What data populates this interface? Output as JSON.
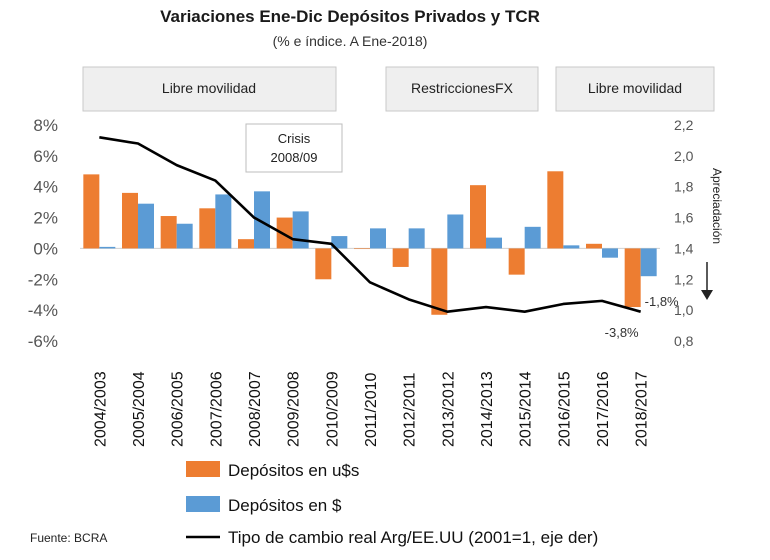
{
  "chart_data": {
    "type": "bar+line",
    "title": "Variaciones Ene-Dic Depósitos Privados y TCR",
    "subtitle": "(% e índice. A Ene-2018)",
    "categories": [
      "2004/2003",
      "2005/2004",
      "2006/2005",
      "2007/2006",
      "2008/2007",
      "2009/2008",
      "2010/2009",
      "2011/2010",
      "2012/2011",
      "2013/2012",
      "2014/2013",
      "2015/2014",
      "2016/2015",
      "2017/2016",
      "2018/2017"
    ],
    "series": [
      {
        "name": "Depósitos en u$s",
        "axis": "left",
        "kind": "bar",
        "color": "#ED7D31",
        "values": [
          4.8,
          3.6,
          2.1,
          2.6,
          0.6,
          2.0,
          -2.0,
          0.0,
          -1.2,
          -4.3,
          4.1,
          -1.7,
          5.0,
          0.3,
          -3.8
        ]
      },
      {
        "name": "Depósitos en $",
        "axis": "left",
        "kind": "bar",
        "color": "#5B9BD5",
        "values": [
          0.1,
          2.9,
          1.6,
          3.5,
          3.7,
          2.4,
          0.8,
          1.3,
          1.3,
          2.2,
          0.7,
          1.4,
          0.2,
          -0.6,
          -1.8
        ]
      },
      {
        "name": "Tipo de cambio real Arg/EE.UU (2001=1, eje der)",
        "axis": "right",
        "kind": "line",
        "color": "#000000",
        "values": [
          2.12,
          2.08,
          1.94,
          1.84,
          1.6,
          1.46,
          1.43,
          1.18,
          1.07,
          0.99,
          1.02,
          0.99,
          1.04,
          1.06,
          0.99
        ]
      }
    ],
    "left_axis": {
      "min": -6,
      "max": 8,
      "step": 2,
      "tick_labels": [
        "-6%",
        "-4%",
        "-2%",
        "0%",
        "2%",
        "4%",
        "6%",
        "8%"
      ]
    },
    "right_axis": {
      "min": 0.8,
      "max": 2.2,
      "step": 0.2,
      "tick_labels": [
        "0,8",
        "1,0",
        "1,2",
        "1,4",
        "1,6",
        "1,8",
        "2,0",
        "2,2"
      ],
      "annotation": "Apreciadación"
    },
    "data_labels": [
      {
        "text": "-1,8%",
        "series": 1,
        "index": 14
      },
      {
        "text": "-3,8%",
        "series": 0,
        "index": 14
      }
    ],
    "periods": [
      {
        "label": "Libre movilidad",
        "from": 0,
        "to": 6
      },
      {
        "label": "RestriccionesFX",
        "from": 8,
        "to": 11
      },
      {
        "label": "Libre movilidad",
        "from": 12,
        "to": 14
      }
    ],
    "annotations": [
      {
        "line1": "Crisis",
        "line2": "2008/09"
      }
    ],
    "legend": [
      "Depósitos en u$s",
      "Depósitos en $",
      "Tipo de cambio real Arg/EE.UU (2001=1, eje der)"
    ],
    "source": "Fuente: BCRA"
  }
}
